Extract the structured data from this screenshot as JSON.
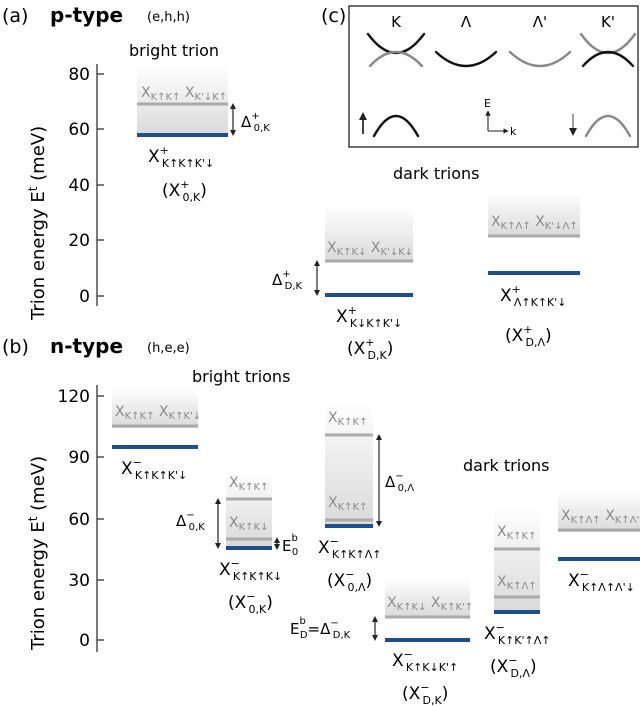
{
  "panel_a": {
    "letter": "(a)",
    "type_label": "p-type",
    "carriers": "(e,h,h)",
    "ylabel": "Trion energy E",
    "ylabel_sup": "t",
    "ylabel_unit": " (meV)",
    "yticks": [
      "0",
      "20",
      "40",
      "60",
      "80"
    ],
    "bright_title": "bright trion",
    "dark_title": "dark trions",
    "bright_upper": "X K↑K↑ X K'↓K↑",
    "bright_name": "X K↑K↑K'↓",
    "bright_alias": "(X 0,K)",
    "bright_delta": "Δ 0,K",
    "dark1_upper": "X K↑K↓ X K'↓K↓",
    "dark1_name": "X K↓K↑K'↓",
    "dark1_alias": "(X D,K)",
    "dark1_delta": "Δ D,K",
    "dark2_upper": "X K↑Λ↑ X K'↓Λ↑",
    "dark2_name": "X Λ↑K↑K'↓",
    "dark2_alias": "(X D,Λ)"
  },
  "panel_b": {
    "letter": "(b)",
    "type_label": "n-type",
    "carriers": "(h,e,e)",
    "ylabel": "Trion energy E",
    "ylabel_sup": "t",
    "ylabel_unit": " (meV)",
    "yticks": [
      "0",
      "30",
      "60",
      "90",
      "120"
    ],
    "bright_title": "bright trions",
    "dark_title": "dark trions",
    "t1_upper": "X K↑K↑ X K↑K'↓",
    "t1_name": "X K↑K↑K'↓",
    "t2_upper1": "X K↑K↑",
    "t2_upper2": "X K↑K↓",
    "t2_name": "X K↑K↑K↓",
    "t2_alias": "(X 0,K)",
    "t2_delta": "Δ 0,K",
    "t2_e0": "E 0",
    "t3_upper1": "X K↑K↑",
    "t3_upper2": "X K↑K↑",
    "t3_name": "X K↑K↑Λ↑",
    "t3_alias": "(X 0,Λ)",
    "t3_delta": "Δ 0,Λ",
    "t4_upper": "X K↑K↓ X K↑K'↑",
    "t4_name": "X K↑K↓K'↑",
    "t4_alias": "(X D,K)",
    "t4_ed": "E D = Δ D,K",
    "t5_upper1": "X K↑K↑",
    "t5_upper2": "X K↑Λ↑",
    "t5_name": "X K↑K'↑Λ↑",
    "t5_alias": "(X D,Λ)",
    "t6_upper": "X K↑Λ↑ X K↑Λ'↓",
    "t6_name": "X K↑Λ↑Λ'↓"
  },
  "panel_c": {
    "letter": "(c)",
    "valleys": [
      "K",
      "Λ",
      "Λ'",
      "K'"
    ],
    "axis_e": "E",
    "axis_k": "k"
  },
  "colors": {
    "ground": "#1f4e8c",
    "upper": "#aaaaaa",
    "label_gray": "#8a8a8a"
  }
}
